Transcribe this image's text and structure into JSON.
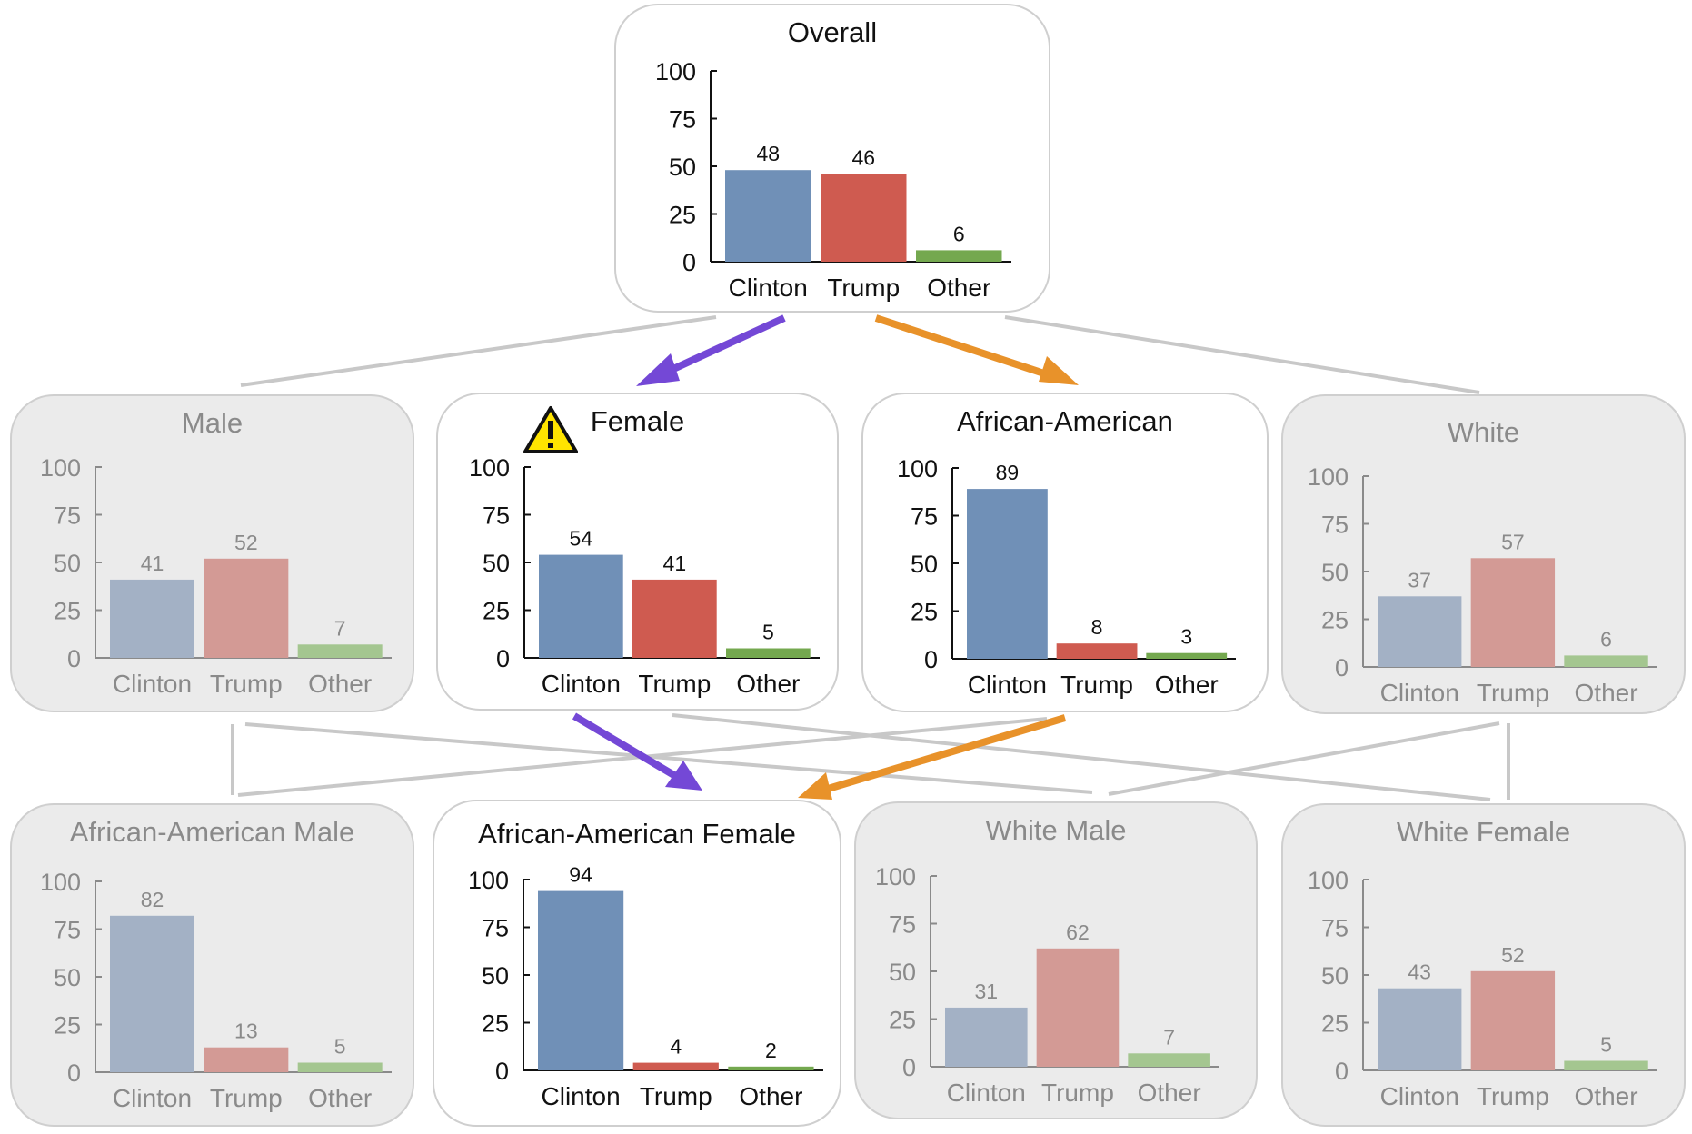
{
  "colors": {
    "clinton_active": "#7090b7",
    "trump_active": "#cf5b50",
    "other_active": "#74a84f",
    "clinton_inactive": "#a3b1c5",
    "trump_inactive": "#d39a95",
    "other_inactive": "#a4c690",
    "arrow_purple": "#7448d6",
    "arrow_orange": "#e8922a",
    "connector_gray": "#c8c8c8"
  },
  "categories": [
    "Clinton",
    "Trump",
    "Other"
  ],
  "y_ticks": [
    "100",
    "75",
    "50",
    "25",
    "0"
  ],
  "panels": [
    {
      "id": "overall",
      "title": "Overall",
      "active": true,
      "icon": ""
    },
    {
      "id": "male",
      "title": "Male",
      "active": false,
      "icon": ""
    },
    {
      "id": "female",
      "title": "Female",
      "active": true,
      "icon": "warning-icon"
    },
    {
      "id": "african-american",
      "title": "African-American",
      "active": true,
      "icon": ""
    },
    {
      "id": "white",
      "title": "White",
      "active": false,
      "icon": ""
    },
    {
      "id": "african-american-male",
      "title": "African-American Male",
      "active": false,
      "icon": ""
    },
    {
      "id": "african-american-female",
      "title": "African-American Female",
      "active": true,
      "icon": ""
    },
    {
      "id": "white-male",
      "title": "White Male",
      "active": false,
      "icon": ""
    },
    {
      "id": "white-female",
      "title": "White Female",
      "active": false,
      "icon": ""
    }
  ],
  "chart_data": [
    {
      "type": "bar",
      "title": "Overall",
      "categories": [
        "Clinton",
        "Trump",
        "Other"
      ],
      "values": [
        48,
        46,
        6
      ],
      "value_labels": [
        "48",
        "46",
        "6"
      ],
      "ylim": [
        0,
        100
      ]
    },
    {
      "type": "bar",
      "title": "Male",
      "categories": [
        "Clinton",
        "Trump",
        "Other"
      ],
      "values": [
        41,
        52,
        7
      ],
      "value_labels": [
        "41",
        "52",
        "7"
      ],
      "ylim": [
        0,
        100
      ]
    },
    {
      "type": "bar",
      "title": "Female",
      "categories": [
        "Clinton",
        "Trump",
        "Other"
      ],
      "values": [
        54,
        41,
        5
      ],
      "value_labels": [
        "54",
        "41",
        "5"
      ],
      "ylim": [
        0,
        100
      ]
    },
    {
      "type": "bar",
      "title": "African-American",
      "categories": [
        "Clinton",
        "Trump",
        "Other"
      ],
      "values": [
        89,
        8,
        3
      ],
      "value_labels": [
        "89",
        "8",
        "3"
      ],
      "ylim": [
        0,
        100
      ]
    },
    {
      "type": "bar",
      "title": "White",
      "categories": [
        "Clinton",
        "Trump",
        "Other"
      ],
      "values": [
        37,
        57,
        6
      ],
      "value_labels": [
        "37",
        "57",
        "6"
      ],
      "ylim": [
        0,
        100
      ]
    },
    {
      "type": "bar",
      "title": "African-American Male",
      "categories": [
        "Clinton",
        "Trump",
        "Other"
      ],
      "values": [
        82,
        13,
        5
      ],
      "value_labels": [
        "82",
        "13",
        "5"
      ],
      "ylim": [
        0,
        100
      ]
    },
    {
      "type": "bar",
      "title": "African-American Female",
      "categories": [
        "Clinton",
        "Trump",
        "Other"
      ],
      "values": [
        94,
        4,
        2
      ],
      "value_labels": [
        "94",
        "4",
        "2"
      ],
      "ylim": [
        0,
        100
      ]
    },
    {
      "type": "bar",
      "title": "White Male",
      "categories": [
        "Clinton",
        "Trump",
        "Other"
      ],
      "values": [
        31,
        62,
        7
      ],
      "value_labels": [
        "31",
        "62",
        "7"
      ],
      "ylim": [
        0,
        100
      ]
    },
    {
      "type": "bar",
      "title": "White Female",
      "categories": [
        "Clinton",
        "Trump",
        "Other"
      ],
      "values": [
        43,
        52,
        5
      ],
      "value_labels": [
        "43",
        "52",
        "5"
      ],
      "ylim": [
        0,
        100
      ]
    }
  ]
}
